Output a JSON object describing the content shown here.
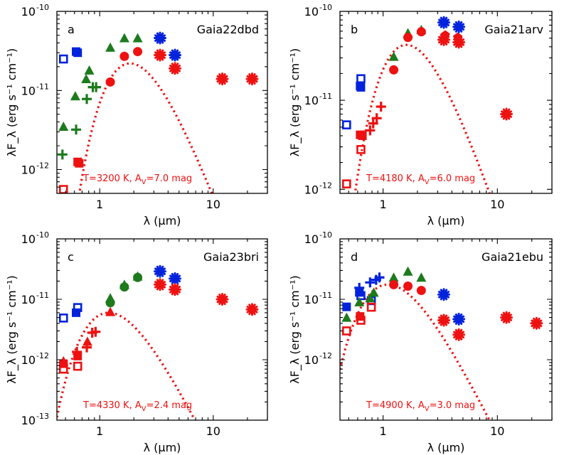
{
  "colors": {
    "blue": "#0022dd",
    "green": "#1d7a1d",
    "red": "#ee1111",
    "axis": "#000000"
  },
  "chart_data": [
    {
      "type": "scatter",
      "panel_label": "a",
      "title": "Gaia22dbd",
      "xlabel": "λ (μm)",
      "ylabel": "λF_λ (erg s⁻¹ cm⁻¹)",
      "xscale": "log",
      "yscale": "log",
      "xlim": [
        0.42,
        30
      ],
      "ylim": [
        5e-13,
        1e-10
      ],
      "x_ticks": [
        {
          "v": 1,
          "label": "1"
        },
        {
          "v": 10,
          "label": "10"
        }
      ],
      "y_ticks": [
        {
          "v": 1e-12,
          "base": "10",
          "exp": "-12"
        },
        {
          "v": 1e-11,
          "base": "10",
          "exp": "-11"
        },
        {
          "v": 1e-10,
          "base": "10",
          "exp": "-10"
        }
      ],
      "annotation": {
        "prefix": "T=3200 K, A",
        "sub": "V",
        "suffix": "=7.0 mag"
      },
      "model_curve": {
        "T_K": 3200,
        "peak_x": 1.85,
        "peak_y": 2.2e-11
      },
      "points": [
        {
          "x": 0.48,
          "y": 2.5e-11,
          "m": "sqo",
          "c": "blue"
        },
        {
          "x": 0.62,
          "y": 3.1e-11,
          "m": "sq",
          "c": "blue"
        },
        {
          "x": 0.64,
          "y": 3e-11,
          "m": "sq",
          "c": "blue"
        },
        {
          "x": 0.48,
          "y": 3.5e-12,
          "m": "tri",
          "c": "green"
        },
        {
          "x": 0.61,
          "y": 8.5e-12,
          "m": "tri",
          "c": "green"
        },
        {
          "x": 0.76,
          "y": 1.4e-11,
          "m": "tri",
          "c": "green"
        },
        {
          "x": 0.81,
          "y": 1.8e-11,
          "m": "tri",
          "c": "green"
        },
        {
          "x": 1.24,
          "y": 3.5e-11,
          "m": "tri",
          "c": "green"
        },
        {
          "x": 1.65,
          "y": 4.6e-11,
          "m": "tri",
          "c": "green"
        },
        {
          "x": 2.16,
          "y": 4.6e-11,
          "m": "tri",
          "c": "green"
        },
        {
          "x": 0.47,
          "y": 1.55e-12,
          "m": "plus",
          "c": "green"
        },
        {
          "x": 0.62,
          "y": 3.2e-12,
          "m": "plus",
          "c": "green"
        },
        {
          "x": 0.77,
          "y": 7.8e-12,
          "m": "plus",
          "c": "green"
        },
        {
          "x": 0.87,
          "y": 1.1e-11,
          "m": "plus",
          "c": "green"
        },
        {
          "x": 0.93,
          "y": 1.1e-11,
          "m": "plus",
          "c": "green"
        },
        {
          "x": 0.64,
          "y": 1.25e-12,
          "m": "sq",
          "c": "red"
        },
        {
          "x": 0.66,
          "y": 1.2e-12,
          "m": "sq",
          "c": "red"
        },
        {
          "x": 0.48,
          "y": 5.6e-13,
          "m": "sqo",
          "c": "red"
        },
        {
          "x": 1.24,
          "y": 1.28e-11,
          "m": "circ",
          "c": "red"
        },
        {
          "x": 1.65,
          "y": 2.7e-11,
          "m": "circ",
          "c": "red"
        },
        {
          "x": 2.16,
          "y": 3.1e-11,
          "m": "circ",
          "c": "red"
        },
        {
          "x": 3.4,
          "y": 4.6e-11,
          "m": "star",
          "c": "blue"
        },
        {
          "x": 4.6,
          "y": 2.8e-11,
          "m": "star",
          "c": "blue"
        },
        {
          "x": 3.4,
          "y": 2.8e-11,
          "m": "star",
          "c": "red"
        },
        {
          "x": 4.6,
          "y": 1.9e-11,
          "m": "star",
          "c": "red"
        },
        {
          "x": 12,
          "y": 1.4e-11,
          "m": "star",
          "c": "red"
        },
        {
          "x": 22,
          "y": 1.4e-11,
          "m": "star",
          "c": "red"
        }
      ]
    },
    {
      "type": "scatter",
      "panel_label": "b",
      "title": "Gaia21arv",
      "xlabel": "λ (μm)",
      "ylabel": "λF_λ (erg s⁻¹ cm⁻¹)",
      "xscale": "log",
      "yscale": "log",
      "xlim": [
        0.42,
        30
      ],
      "ylim": [
        9e-13,
        1e-10
      ],
      "x_ticks": [
        {
          "v": 1,
          "label": "1"
        },
        {
          "v": 10,
          "label": "10"
        }
      ],
      "y_ticks": [
        {
          "v": 1e-12,
          "base": "10",
          "exp": "-12"
        },
        {
          "v": 1e-11,
          "base": "10",
          "exp": "-11"
        },
        {
          "v": 1e-10,
          "base": "10",
          "exp": "-10"
        }
      ],
      "annotation": {
        "prefix": "T=4180 K, A",
        "sub": "V",
        "suffix": "=6.0 mag"
      },
      "model_curve": {
        "T_K": 4180,
        "peak_x": 1.6,
        "peak_y": 4.2e-11
      },
      "points": [
        {
          "x": 0.48,
          "y": 5.3e-12,
          "m": "sqo",
          "c": "blue"
        },
        {
          "x": 0.64,
          "y": 1.75e-11,
          "m": "sqo",
          "c": "blue"
        },
        {
          "x": 0.63,
          "y": 1.45e-11,
          "m": "sq",
          "c": "blue"
        },
        {
          "x": 0.64,
          "y": 1.4e-11,
          "m": "sq",
          "c": "blue"
        },
        {
          "x": 1.24,
          "y": 3.1e-11,
          "m": "tri",
          "c": "green"
        },
        {
          "x": 1.65,
          "y": 5.7e-11,
          "m": "tri",
          "c": "green"
        },
        {
          "x": 2.16,
          "y": 6.2e-11,
          "m": "tri",
          "c": "green"
        },
        {
          "x": 0.48,
          "y": 1.15e-12,
          "m": "sqo",
          "c": "red"
        },
        {
          "x": 0.64,
          "y": 2.8e-12,
          "m": "sqo",
          "c": "red"
        },
        {
          "x": 0.63,
          "y": 4.1e-12,
          "m": "sq",
          "c": "red"
        },
        {
          "x": 0.66,
          "y": 4e-12,
          "m": "sq",
          "c": "red"
        },
        {
          "x": 0.77,
          "y": 4.6e-12,
          "m": "plus",
          "c": "red"
        },
        {
          "x": 0.82,
          "y": 5.5e-12,
          "m": "plus",
          "c": "red"
        },
        {
          "x": 0.88,
          "y": 6.3e-12,
          "m": "plus",
          "c": "red"
        },
        {
          "x": 0.96,
          "y": 8.5e-12,
          "m": "plus",
          "c": "red"
        },
        {
          "x": 1.24,
          "y": 2.2e-11,
          "m": "circ",
          "c": "red"
        },
        {
          "x": 1.65,
          "y": 5.1e-11,
          "m": "circ",
          "c": "red"
        },
        {
          "x": 2.16,
          "y": 5.9e-11,
          "m": "circ",
          "c": "red"
        },
        {
          "x": 3.5,
          "y": 5.4e-11,
          "m": "pent",
          "c": "red"
        },
        {
          "x": 4.5,
          "y": 5.1e-11,
          "m": "pent",
          "c": "red"
        },
        {
          "x": 3.4,
          "y": 7.5e-11,
          "m": "star",
          "c": "blue"
        },
        {
          "x": 4.6,
          "y": 6.7e-11,
          "m": "star",
          "c": "blue"
        },
        {
          "x": 3.4,
          "y": 4.8e-11,
          "m": "star",
          "c": "red"
        },
        {
          "x": 4.6,
          "y": 4.5e-11,
          "m": "star",
          "c": "red"
        },
        {
          "x": 12,
          "y": 7e-12,
          "m": "star",
          "c": "red"
        }
      ]
    },
    {
      "type": "scatter",
      "panel_label": "c",
      "title": "Gaia23bri",
      "xlabel": "λ (μm)",
      "ylabel": "λF_λ (erg s⁻¹ cm⁻¹)",
      "xscale": "log",
      "yscale": "log",
      "xlim": [
        0.42,
        30
      ],
      "ylim": [
        1e-13,
        1e-10
      ],
      "x_ticks": [
        {
          "v": 1,
          "label": "1"
        },
        {
          "v": 10,
          "label": "10"
        }
      ],
      "y_ticks": [
        {
          "v": 1e-13,
          "base": "10",
          "exp": "-13"
        },
        {
          "v": 1e-12,
          "base": "10",
          "exp": "-12"
        },
        {
          "v": 1e-11,
          "base": "10",
          "exp": "-11"
        },
        {
          "v": 1e-10,
          "base": "10",
          "exp": "-10"
        }
      ],
      "annotation": {
        "prefix": "T=4330 K, A",
        "sub": "V",
        "suffix": "=2.4 mag"
      },
      "model_curve": {
        "T_K": 4330,
        "peak_x": 1.2,
        "peak_y": 6e-12
      },
      "points": [
        {
          "x": 0.48,
          "y": 4.9e-12,
          "m": "sqo",
          "c": "blue"
        },
        {
          "x": 0.62,
          "y": 6e-12,
          "m": "sq",
          "c": "blue"
        },
        {
          "x": 0.64,
          "y": 7.3e-12,
          "m": "sqo",
          "c": "blue"
        },
        {
          "x": 1.24,
          "y": 1.05e-11,
          "m": "tri",
          "c": "green"
        },
        {
          "x": 1.65,
          "y": 1.75e-11,
          "m": "tri",
          "c": "green"
        },
        {
          "x": 2.16,
          "y": 2.4e-11,
          "m": "tri",
          "c": "green"
        },
        {
          "x": 1.24,
          "y": 8.8e-12,
          "m": "circ",
          "c": "green"
        },
        {
          "x": 1.65,
          "y": 1.6e-11,
          "m": "circ",
          "c": "green"
        },
        {
          "x": 2.16,
          "y": 2.3e-11,
          "m": "circ",
          "c": "green"
        },
        {
          "x": 0.48,
          "y": 7e-13,
          "m": "sqo",
          "c": "red"
        },
        {
          "x": 0.48,
          "y": 8.6e-13,
          "m": "sq",
          "c": "red"
        },
        {
          "x": 0.48,
          "y": 9.5e-13,
          "m": "tri",
          "c": "red"
        },
        {
          "x": 0.64,
          "y": 7.8e-13,
          "m": "sqo",
          "c": "red"
        },
        {
          "x": 0.64,
          "y": 1.15e-12,
          "m": "sq",
          "c": "red"
        },
        {
          "x": 0.63,
          "y": 1.35e-12,
          "m": "plus",
          "c": "red"
        },
        {
          "x": 0.77,
          "y": 1.6e-12,
          "m": "plus",
          "c": "red"
        },
        {
          "x": 0.78,
          "y": 2e-12,
          "m": "tri",
          "c": "red"
        },
        {
          "x": 0.86,
          "y": 2.8e-12,
          "m": "plus",
          "c": "red"
        },
        {
          "x": 0.92,
          "y": 2.9e-12,
          "m": "plus",
          "c": "red"
        },
        {
          "x": 1.24,
          "y": 6.2e-12,
          "m": "tri",
          "c": "red"
        },
        {
          "x": 3.4,
          "y": 2.9e-11,
          "m": "star",
          "c": "blue"
        },
        {
          "x": 4.6,
          "y": 2.2e-11,
          "m": "star",
          "c": "blue"
        },
        {
          "x": 3.4,
          "y": 1.75e-11,
          "m": "star",
          "c": "red"
        },
        {
          "x": 4.6,
          "y": 1.45e-11,
          "m": "star",
          "c": "red"
        },
        {
          "x": 12,
          "y": 1e-11,
          "m": "star",
          "c": "red"
        },
        {
          "x": 22,
          "y": 6.8e-12,
          "m": "star",
          "c": "red"
        }
      ]
    },
    {
      "type": "scatter",
      "panel_label": "d",
      "title": "Gaia21ebu",
      "xlabel": "λ (μm)",
      "ylabel": "λF_λ (erg s⁻¹ cm⁻¹)",
      "xscale": "log",
      "yscale": "log",
      "xlim": [
        0.42,
        30
      ],
      "ylim": [
        1e-13,
        1e-10
      ],
      "x_ticks": [
        {
          "v": 1,
          "label": "1"
        },
        {
          "v": 10,
          "label": "10"
        }
      ],
      "y_ticks": [
        {
          "v": 1e-12,
          "base": "10",
          "exp": "-12"
        },
        {
          "v": 1e-11,
          "base": "10",
          "exp": "-11"
        },
        {
          "v": 1e-10,
          "base": "10",
          "exp": "-10"
        }
      ],
      "annotation": {
        "prefix": "T=4900 K, A",
        "sub": "V",
        "suffix": "=3.0 mag"
      },
      "model_curve": {
        "T_K": 4900,
        "peak_x": 1.1,
        "peak_y": 1.75e-11
      },
      "points": [
        {
          "x": 0.48,
          "y": 7.5e-12,
          "m": "sq",
          "c": "blue"
        },
        {
          "x": 0.62,
          "y": 1.3e-11,
          "m": "sq",
          "c": "blue"
        },
        {
          "x": 0.64,
          "y": 1.15e-11,
          "m": "sqo",
          "c": "blue"
        },
        {
          "x": 0.62,
          "y": 1.55e-11,
          "m": "plus",
          "c": "blue"
        },
        {
          "x": 0.77,
          "y": 1.9e-11,
          "m": "plus",
          "c": "blue"
        },
        {
          "x": 0.87,
          "y": 2.1e-11,
          "m": "plus",
          "c": "blue"
        },
        {
          "x": 0.93,
          "y": 2.3e-11,
          "m": "plus",
          "c": "blue"
        },
        {
          "x": 0.79,
          "y": 9.5e-12,
          "m": "sqo",
          "c": "blue"
        },
        {
          "x": 0.48,
          "y": 5e-12,
          "m": "tri",
          "c": "green"
        },
        {
          "x": 0.62,
          "y": 9e-12,
          "m": "tri",
          "c": "green"
        },
        {
          "x": 0.77,
          "y": 1.05e-11,
          "m": "tri",
          "c": "green"
        },
        {
          "x": 0.83,
          "y": 1.3e-11,
          "m": "tri",
          "c": "green"
        },
        {
          "x": 1.24,
          "y": 2.3e-11,
          "m": "tri",
          "c": "green"
        },
        {
          "x": 1.65,
          "y": 2.9e-11,
          "m": "tri",
          "c": "green"
        },
        {
          "x": 2.16,
          "y": 2.3e-11,
          "m": "tri",
          "c": "green"
        },
        {
          "x": 0.48,
          "y": 3e-12,
          "m": "sqo",
          "c": "red"
        },
        {
          "x": 0.63,
          "y": 5.2e-12,
          "m": "sq",
          "c": "red"
        },
        {
          "x": 0.64,
          "y": 4.5e-12,
          "m": "sqo",
          "c": "red"
        },
        {
          "x": 0.79,
          "y": 7.4e-12,
          "m": "sqo",
          "c": "red"
        },
        {
          "x": 1.24,
          "y": 1.75e-11,
          "m": "circ",
          "c": "red"
        },
        {
          "x": 1.65,
          "y": 1.65e-11,
          "m": "circ",
          "c": "red"
        },
        {
          "x": 2.16,
          "y": 1.4e-11,
          "m": "circ",
          "c": "red"
        },
        {
          "x": 3.4,
          "y": 1.2e-11,
          "m": "star",
          "c": "blue"
        },
        {
          "x": 4.6,
          "y": 4.7e-12,
          "m": "star",
          "c": "blue"
        },
        {
          "x": 3.4,
          "y": 4.5e-12,
          "m": "star",
          "c": "red"
        },
        {
          "x": 4.6,
          "y": 2.6e-12,
          "m": "star",
          "c": "red"
        },
        {
          "x": 12,
          "y": 5e-12,
          "m": "star",
          "c": "red"
        },
        {
          "x": 22,
          "y": 4e-12,
          "m": "star",
          "c": "red"
        }
      ]
    }
  ]
}
